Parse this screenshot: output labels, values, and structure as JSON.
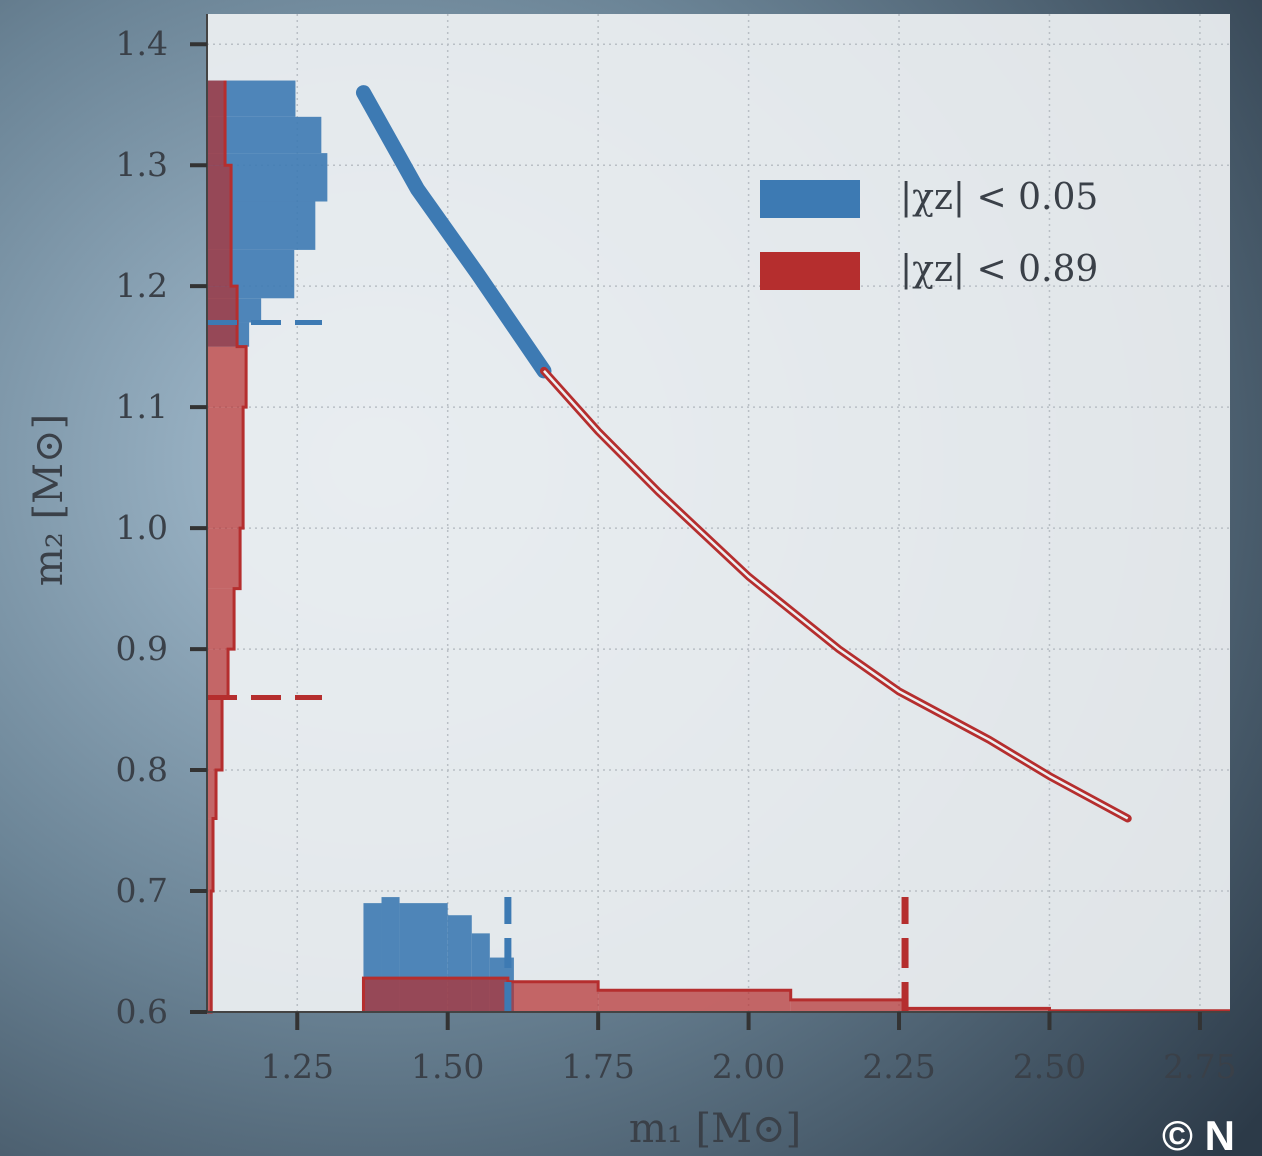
{
  "chart_data": {
    "type": "line",
    "x_label": "m₁ [M⊙]",
    "y_label": "m₂ [M⊙]",
    "xlim": [
      1.1,
      2.8
    ],
    "ylim": [
      0.6,
      1.425
    ],
    "xticks": [
      1.25,
      {
        "value": 1.5,
        "label": "1.50"
      },
      1.75,
      {
        "value": 2,
        "label": "2.00"
      },
      2.25,
      {
        "value": 2.5,
        "label": "2.50"
      },
      2.75
    ],
    "yticks": [
      0.6,
      0.7,
      0.8,
      0.9,
      {
        "value": 1,
        "label": "1.0"
      },
      1.1,
      1.2,
      1.3,
      1.4
    ],
    "grid": true,
    "legend": "upper right",
    "series": [
      {
        "name": "|χz| < 0.05",
        "color": "#3d7ab3",
        "x": [
          1.36,
          1.45,
          1.55,
          1.66
        ],
        "values": [
          1.36,
          1.28,
          1.21,
          1.13
        ],
        "x_marginal": {
          "bins": [
            1.36,
            1.39,
            1.42,
            1.5,
            1.54,
            1.57,
            1.61
          ],
          "values": [
            0.69,
            0.695,
            0.69,
            0.68,
            0.665,
            0.645
          ],
          "quantile": 1.6
        },
        "y_marginal": {
          "bins": [
            1.15,
            1.17,
            1.19,
            1.23,
            1.27,
            1.31,
            1.34,
            1.37
          ],
          "values": [
            1.17,
            1.19,
            1.245,
            1.28,
            1.3,
            1.29,
            1.247
          ],
          "quantile": 1.17
        }
      },
      {
        "name": "|χz| < 0.89",
        "color": "#b52e2e",
        "x": [
          1.66,
          1.75,
          1.85,
          2.0,
          2.15,
          2.25,
          2.4,
          2.5,
          2.63
        ],
        "values": [
          1.13,
          1.08,
          1.03,
          0.96,
          0.9,
          0.865,
          0.825,
          0.795,
          0.76
        ],
        "x_marginal": {
          "bins": [
            1.36,
            1.6,
            1.75,
            2.07,
            2.26,
            2.5,
            2.8
          ],
          "values": [
            0.628,
            0.625,
            0.618,
            0.61,
            0.603,
            0.601
          ],
          "quantile": 2.26
        },
        "y_marginal": {
          "bins": [
            0.6,
            0.7,
            0.76,
            0.8,
            0.86,
            0.9,
            0.95,
            1.0,
            1.1,
            1.15,
            1.2,
            1.3,
            1.37
          ],
          "values": [
            1.107,
            1.11,
            1.115,
            1.125,
            1.135,
            1.145,
            1.155,
            1.16,
            1.165,
            1.15,
            1.14,
            1.13
          ],
          "quantile": 0.86
        }
      }
    ],
    "watermark": "© N"
  }
}
